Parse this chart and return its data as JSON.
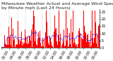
{
  "title": "Milwaukee Weather Actual and Average Wind Speed by Minute mph (Last 24 Hours)",
  "ylabel_right_ticks": [
    0,
    5,
    10,
    15,
    20,
    25
  ],
  "bar_color": "#FF0000",
  "line_color": "#0000FF",
  "background_color": "#FFFFFF",
  "plot_bg_color": "#FFFFFF",
  "grid_color": "#C0C0C0",
  "n_points": 1440,
  "ylim": [
    0,
    27
  ],
  "title_fontsize": 4.5,
  "tick_fontsize": 3.5,
  "seed": 42
}
